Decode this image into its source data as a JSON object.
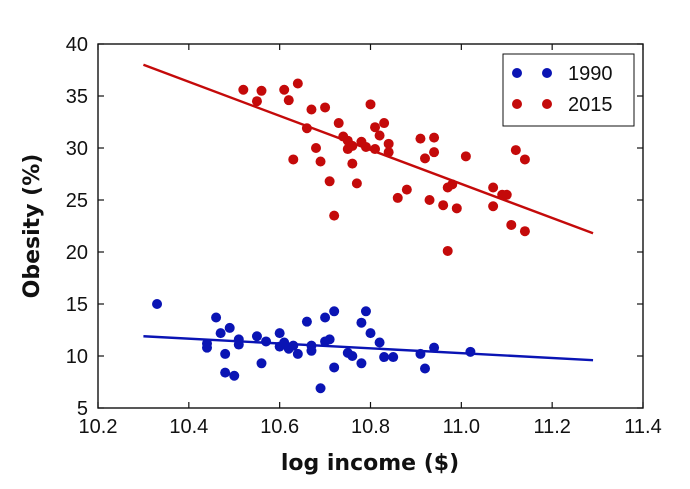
{
  "chart_data": {
    "type": "scatter",
    "title": "",
    "xlabel": "log income ($)",
    "ylabel": "Obesity (%)",
    "xlim": [
      10.2,
      11.4
    ],
    "ylim": [
      5,
      40
    ],
    "xticks": [
      "10.2",
      "10.4",
      "10.6",
      "10.8",
      "11.0",
      "11.2",
      "11.4"
    ],
    "yticks": [
      "5",
      "10",
      "15",
      "20",
      "25",
      "30",
      "35",
      "40"
    ],
    "grid": false,
    "legend_position": "top-right",
    "series": [
      {
        "name": "1990",
        "color": "#0a14b4",
        "points": [
          [
            10.33,
            15.0
          ],
          [
            10.44,
            10.8
          ],
          [
            10.44,
            11.2
          ],
          [
            10.46,
            13.7
          ],
          [
            10.47,
            12.2
          ],
          [
            10.48,
            10.2
          ],
          [
            10.48,
            8.4
          ],
          [
            10.49,
            12.7
          ],
          [
            10.5,
            8.1
          ],
          [
            10.51,
            11.1
          ],
          [
            10.51,
            11.6
          ],
          [
            10.55,
            11.9
          ],
          [
            10.56,
            9.3
          ],
          [
            10.57,
            11.4
          ],
          [
            10.6,
            12.2
          ],
          [
            10.6,
            10.9
          ],
          [
            10.61,
            11.3
          ],
          [
            10.62,
            10.7
          ],
          [
            10.63,
            11.0
          ],
          [
            10.64,
            10.2
          ],
          [
            10.66,
            13.3
          ],
          [
            10.67,
            11.0
          ],
          [
            10.67,
            10.5
          ],
          [
            10.69,
            6.9
          ],
          [
            10.7,
            11.4
          ],
          [
            10.7,
            13.7
          ],
          [
            10.71,
            11.6
          ],
          [
            10.72,
            14.3
          ],
          [
            10.72,
            8.9
          ],
          [
            10.75,
            10.3
          ],
          [
            10.76,
            10.0
          ],
          [
            10.78,
            13.2
          ],
          [
            10.78,
            9.3
          ],
          [
            10.79,
            14.3
          ],
          [
            10.8,
            12.2
          ],
          [
            10.82,
            11.3
          ],
          [
            10.83,
            9.9
          ],
          [
            10.85,
            9.9
          ],
          [
            10.91,
            10.2
          ],
          [
            10.92,
            8.8
          ],
          [
            10.94,
            10.8
          ],
          [
            11.02,
            10.4
          ]
        ],
        "trend": [
          [
            10.3,
            11.9
          ],
          [
            11.29,
            9.6
          ]
        ]
      },
      {
        "name": "2015",
        "color": "#c40a0a",
        "points": [
          [
            10.52,
            35.6
          ],
          [
            10.55,
            34.5
          ],
          [
            10.56,
            35.5
          ],
          [
            10.61,
            35.6
          ],
          [
            10.62,
            34.6
          ],
          [
            10.63,
            28.9
          ],
          [
            10.64,
            36.2
          ],
          [
            10.66,
            31.9
          ],
          [
            10.67,
            33.7
          ],
          [
            10.68,
            30.0
          ],
          [
            10.69,
            28.7
          ],
          [
            10.7,
            33.9
          ],
          [
            10.71,
            26.8
          ],
          [
            10.72,
            23.5
          ],
          [
            10.73,
            32.4
          ],
          [
            10.74,
            31.1
          ],
          [
            10.75,
            30.7
          ],
          [
            10.75,
            29.9
          ],
          [
            10.76,
            30.2
          ],
          [
            10.76,
            28.5
          ],
          [
            10.77,
            26.6
          ],
          [
            10.78,
            30.6
          ],
          [
            10.79,
            30.1
          ],
          [
            10.8,
            34.2
          ],
          [
            10.81,
            29.9
          ],
          [
            10.81,
            32.0
          ],
          [
            10.82,
            31.2
          ],
          [
            10.83,
            32.4
          ],
          [
            10.84,
            30.4
          ],
          [
            10.84,
            29.6
          ],
          [
            10.86,
            25.2
          ],
          [
            10.88,
            26.0
          ],
          [
            10.91,
            30.9
          ],
          [
            10.92,
            29.0
          ],
          [
            10.93,
            25.0
          ],
          [
            10.94,
            31.0
          ],
          [
            10.94,
            29.6
          ],
          [
            10.96,
            24.5
          ],
          [
            10.97,
            26.2
          ],
          [
            10.97,
            20.1
          ],
          [
            10.98,
            26.5
          ],
          [
            10.99,
            24.2
          ],
          [
            11.01,
            29.2
          ],
          [
            11.07,
            26.2
          ],
          [
            11.07,
            24.4
          ],
          [
            11.09,
            25.5
          ],
          [
            11.1,
            25.5
          ],
          [
            11.11,
            22.6
          ],
          [
            11.12,
            29.8
          ],
          [
            11.14,
            28.9
          ],
          [
            11.14,
            22.0
          ]
        ],
        "trend": [
          [
            10.3,
            38.0
          ],
          [
            11.29,
            21.8
          ]
        ]
      }
    ]
  }
}
